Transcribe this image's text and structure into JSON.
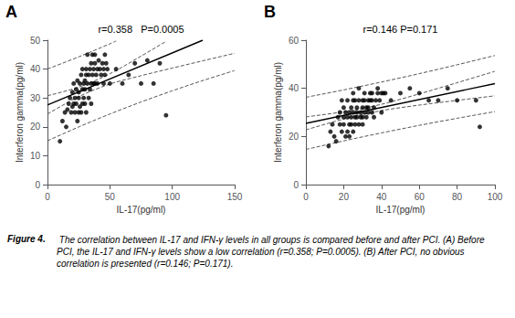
{
  "chart_data": [
    {
      "type": "scatter",
      "label": "A",
      "title": "r=0.358   P=0.0005",
      "xlabel": "IL-17(pg/ml)",
      "ylabel": "Interferon gamma(pg/ml)",
      "xlim": [
        0,
        150
      ],
      "ylim": [
        0,
        50
      ],
      "xticks": [
        0,
        50,
        100,
        150
      ],
      "yticks": [
        0,
        10,
        20,
        30,
        40,
        50
      ],
      "grid": false,
      "series": [
        {
          "type": "scatter",
          "color": "#000000",
          "marker": "circle",
          "x": [
            10,
            12,
            14,
            15,
            16,
            17,
            18,
            19,
            20,
            20,
            21,
            21,
            22,
            22,
            23,
            23,
            24,
            24,
            25,
            25,
            25,
            26,
            26,
            27,
            27,
            28,
            28,
            28,
            29,
            29,
            30,
            30,
            30,
            31,
            31,
            31,
            32,
            32,
            33,
            33,
            34,
            34,
            35,
            35,
            35,
            36,
            36,
            37,
            37,
            38,
            38,
            38,
            39,
            40,
            40,
            41,
            42,
            43,
            44,
            45,
            45,
            46,
            46,
            47,
            48,
            50,
            55,
            60,
            65,
            70,
            75,
            80,
            85,
            90,
            95
          ],
          "values": [
            15,
            22,
            25,
            20,
            26,
            28,
            30,
            25,
            27,
            32,
            28,
            35,
            30,
            25,
            28,
            33,
            22,
            36,
            30,
            25,
            32,
            35,
            27,
            38,
            25,
            33,
            40,
            28,
            35,
            30,
            36,
            28,
            33,
            38,
            25,
            40,
            35,
            45,
            30,
            38,
            33,
            40,
            35,
            42,
            28,
            45,
            38,
            35,
            40,
            42,
            35,
            45,
            38,
            40,
            35,
            43,
            40,
            38,
            42,
            35,
            40,
            45,
            38,
            42,
            40,
            35,
            40,
            35,
            38,
            42,
            35,
            43,
            35,
            42,
            24
          ]
        },
        {
          "type": "line",
          "color": "#000000",
          "line_style": "solid",
          "x": [
            0,
            124.43
          ],
          "values": [
            27.6,
            50
          ]
        },
        {
          "type": "line",
          "color": "#555555",
          "line_style": "dashed",
          "x": [
            0,
            25,
            50,
            75,
            95
          ],
          "values": [
            30.77,
            33.74,
            38.37,
            44.49,
            49.58
          ]
        },
        {
          "type": "line",
          "color": "#555555",
          "line_style": "dashed",
          "x": [
            0,
            25,
            50,
            75,
            100,
            125,
            150
          ],
          "values": [
            24.42,
            30.46,
            34.82,
            37.71,
            40.35,
            42.92,
            45.47
          ]
        },
        {
          "type": "line",
          "color": "#555555",
          "line_style": "dashed",
          "x": [
            0,
            25,
            50,
            55
          ],
          "values": [
            40.03,
            44.23,
            48.75,
            49.7
          ]
        },
        {
          "type": "line",
          "color": "#555555",
          "line_style": "dashed",
          "x": [
            0,
            25,
            50,
            75,
            100,
            125,
            150
          ],
          "values": [
            15.16,
            19.96,
            24.44,
            28.61,
            32.48,
            36.1,
            39.5
          ]
        }
      ]
    },
    {
      "type": "scatter",
      "label": "B",
      "title": "r=0.146 P=0.171",
      "xlabel": "IL-17(pg/ml)",
      "ylabel": "Interferon gamma(pg/ml)",
      "xlim": [
        0,
        100
      ],
      "ylim": [
        0,
        60
      ],
      "xticks": [
        0,
        20,
        40,
        60,
        80,
        100
      ],
      "yticks": [
        0,
        20,
        40,
        60
      ],
      "grid": false,
      "series": [
        {
          "type": "scatter",
          "color": "#000000",
          "marker": "circle",
          "x": [
            12,
            13,
            14,
            15,
            16,
            17,
            18,
            18,
            19,
            19,
            20,
            20,
            20,
            21,
            21,
            22,
            22,
            22,
            23,
            23,
            23,
            24,
            24,
            24,
            25,
            25,
            25,
            25,
            26,
            26,
            26,
            27,
            27,
            27,
            28,
            28,
            28,
            29,
            29,
            30,
            30,
            30,
            30,
            31,
            31,
            31,
            32,
            32,
            33,
            33,
            33,
            34,
            34,
            35,
            35,
            35,
            36,
            36,
            37,
            38,
            38,
            39,
            40,
            40,
            41,
            42,
            45,
            50,
            55,
            60,
            65,
            70,
            75,
            80,
            90,
            92
          ],
          "values": [
            16,
            22,
            25,
            20,
            18,
            28,
            25,
            30,
            22,
            35,
            28,
            25,
            32,
            30,
            20,
            28,
            35,
            22,
            30,
            25,
            20,
            32,
            28,
            25,
            35,
            30,
            22,
            38,
            28,
            35,
            25,
            32,
            30,
            28,
            35,
            25,
            40,
            30,
            28,
            35,
            32,
            28,
            25,
            38,
            35,
            30,
            32,
            28,
            35,
            32,
            30,
            38,
            35,
            30,
            35,
            38,
            32,
            28,
            35,
            40,
            38,
            35,
            38,
            30,
            38,
            38,
            35,
            38,
            40,
            38,
            35,
            35,
            40,
            35,
            35,
            24
          ]
        },
        {
          "type": "line",
          "color": "#000000",
          "line_style": "solid",
          "x": [
            0,
            100
          ],
          "values": [
            25.44,
            41.98
          ]
        },
        {
          "type": "line",
          "color": "#555555",
          "line_style": "dashed",
          "x": [
            0,
            20,
            40,
            60,
            80,
            100
          ],
          "values": [
            28.13,
            30.27,
            33.37,
            37.7,
            42.34,
            47.06
          ]
        },
        {
          "type": "line",
          "color": "#555555",
          "line_style": "dashed",
          "x": [
            0,
            20,
            40,
            60,
            80,
            100
          ],
          "values": [
            22.75,
            27.22,
            30.74,
            33.03,
            35.0,
            36.89
          ]
        },
        {
          "type": "line",
          "color": "#555555",
          "line_style": "dashed",
          "x": [
            0,
            20,
            40,
            60,
            80,
            100
          ],
          "values": [
            36.27,
            39.35,
            42.63,
            46.11,
            49.79,
            53.64
          ]
        },
        {
          "type": "line",
          "color": "#555555",
          "line_style": "dashed",
          "x": [
            0,
            20,
            40,
            60,
            80,
            100
          ],
          "values": [
            14.61,
            18.15,
            21.48,
            24.61,
            27.55,
            30.32
          ]
        }
      ]
    }
  ],
  "caption_label": "Figure 4.",
  "caption": " The correlation between IL-17 and IFN-γ levels in all groups is compared before and after PCI. (A) Before PCI, the IL-17 and IFN-γ levels show a low correlation (r=0.358; P=0.0005). (B) After PCI, no obvious correlation is presented (r=0.146; P=0.171)."
}
